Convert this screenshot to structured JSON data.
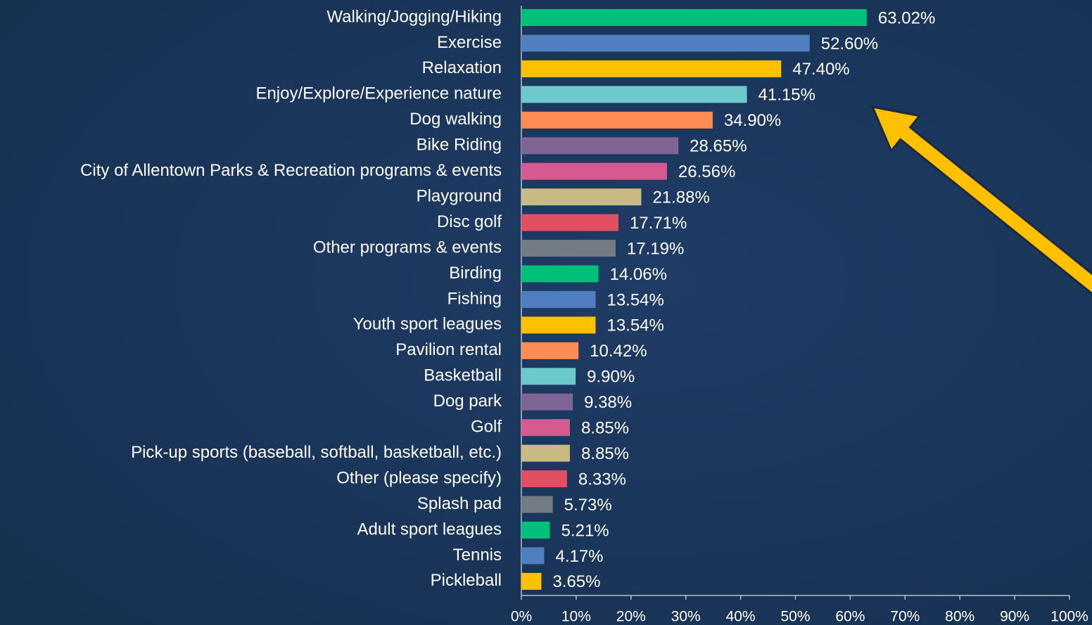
{
  "chart_data": {
    "type": "hbar",
    "categories": [
      "Walking/Jogging/Hiking",
      "Exercise",
      "Relaxation",
      "Enjoy/Explore/Experience nature",
      "Dog walking",
      "Bike Riding",
      "City of Allentown Parks & Recreation programs & events",
      "Playground",
      "Disc golf",
      "Other programs & events",
      "Birding",
      "Fishing",
      "Youth sport leagues",
      "Pavilion rental",
      "Basketball",
      "Dog park",
      "Golf",
      "Pick-up sports (baseball, softball, basketball, etc.)",
      "Other (please specify)",
      "Splash pad",
      "Adult sport leagues",
      "Tennis",
      "Pickleball"
    ],
    "values": [
      63.02,
      52.6,
      47.4,
      41.15,
      34.9,
      28.65,
      26.56,
      21.88,
      17.71,
      17.19,
      14.06,
      13.54,
      13.54,
      10.42,
      9.9,
      9.38,
      8.85,
      8.85,
      8.33,
      5.73,
      5.21,
      4.17,
      3.65
    ],
    "value_labels": [
      "63.02%",
      "52.60%",
      "47.40%",
      "41.15%",
      "34.90%",
      "28.65%",
      "26.56%",
      "21.88%",
      "17.71%",
      "17.19%",
      "14.06%",
      "13.54%",
      "13.54%",
      "10.42%",
      "9.90%",
      "9.38%",
      "8.85%",
      "8.85%",
      "8.33%",
      "5.73%",
      "5.21%",
      "4.17%",
      "3.65%"
    ],
    "colors": [
      "#00c07a",
      "#4f7fbf",
      "#ffc000",
      "#6ccacc",
      "#ff8c52",
      "#7f6496",
      "#d45a8f",
      "#c9b983",
      "#e05062",
      "#737c83",
      "#00c07a",
      "#4f7fbf",
      "#ffc000",
      "#ff8c52",
      "#6ccacc",
      "#7f6496",
      "#d45a8f",
      "#c9b983",
      "#e05062",
      "#737c83",
      "#00c07a",
      "#4f7fbf",
      "#ffc000"
    ],
    "xlim": [
      0,
      100
    ],
    "xticks": [
      {
        "value": 0,
        "label": "0%"
      },
      {
        "value": 10,
        "label": "10%"
      },
      {
        "value": 20,
        "label": "20%"
      },
      {
        "value": 30,
        "label": "30%"
      },
      {
        "value": 40,
        "label": "40%"
      },
      {
        "value": 50,
        "label": "50%"
      },
      {
        "value": 60,
        "label": "60%"
      },
      {
        "value": 70,
        "label": "70%"
      },
      {
        "value": 80,
        "label": "80%"
      },
      {
        "value": 90,
        "label": "90%"
      },
      {
        "value": 100,
        "label": "100%"
      }
    ]
  }
}
